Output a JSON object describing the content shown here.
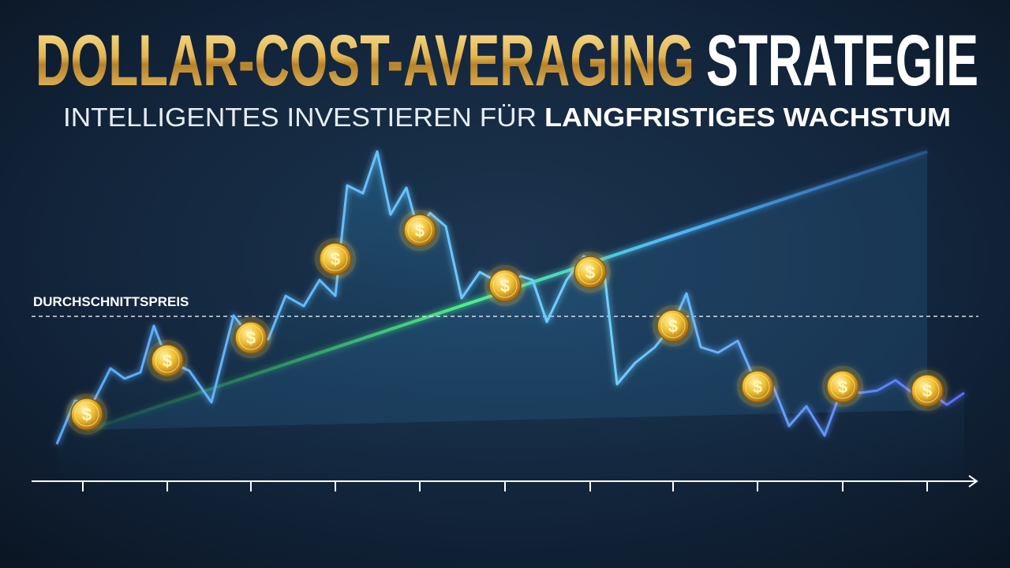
{
  "title": {
    "gold": "DOLLAR-COST-AVERAGING",
    "white": "STRATEGIE"
  },
  "subtitle": {
    "regular": "INTELLIGENTES INVESTIEREN FÜR",
    "bold": "LANGFRISTIGES WACHSTUM"
  },
  "average_label": "DURCHSCHNITTSPREIS",
  "coin_symbol": "$"
}
